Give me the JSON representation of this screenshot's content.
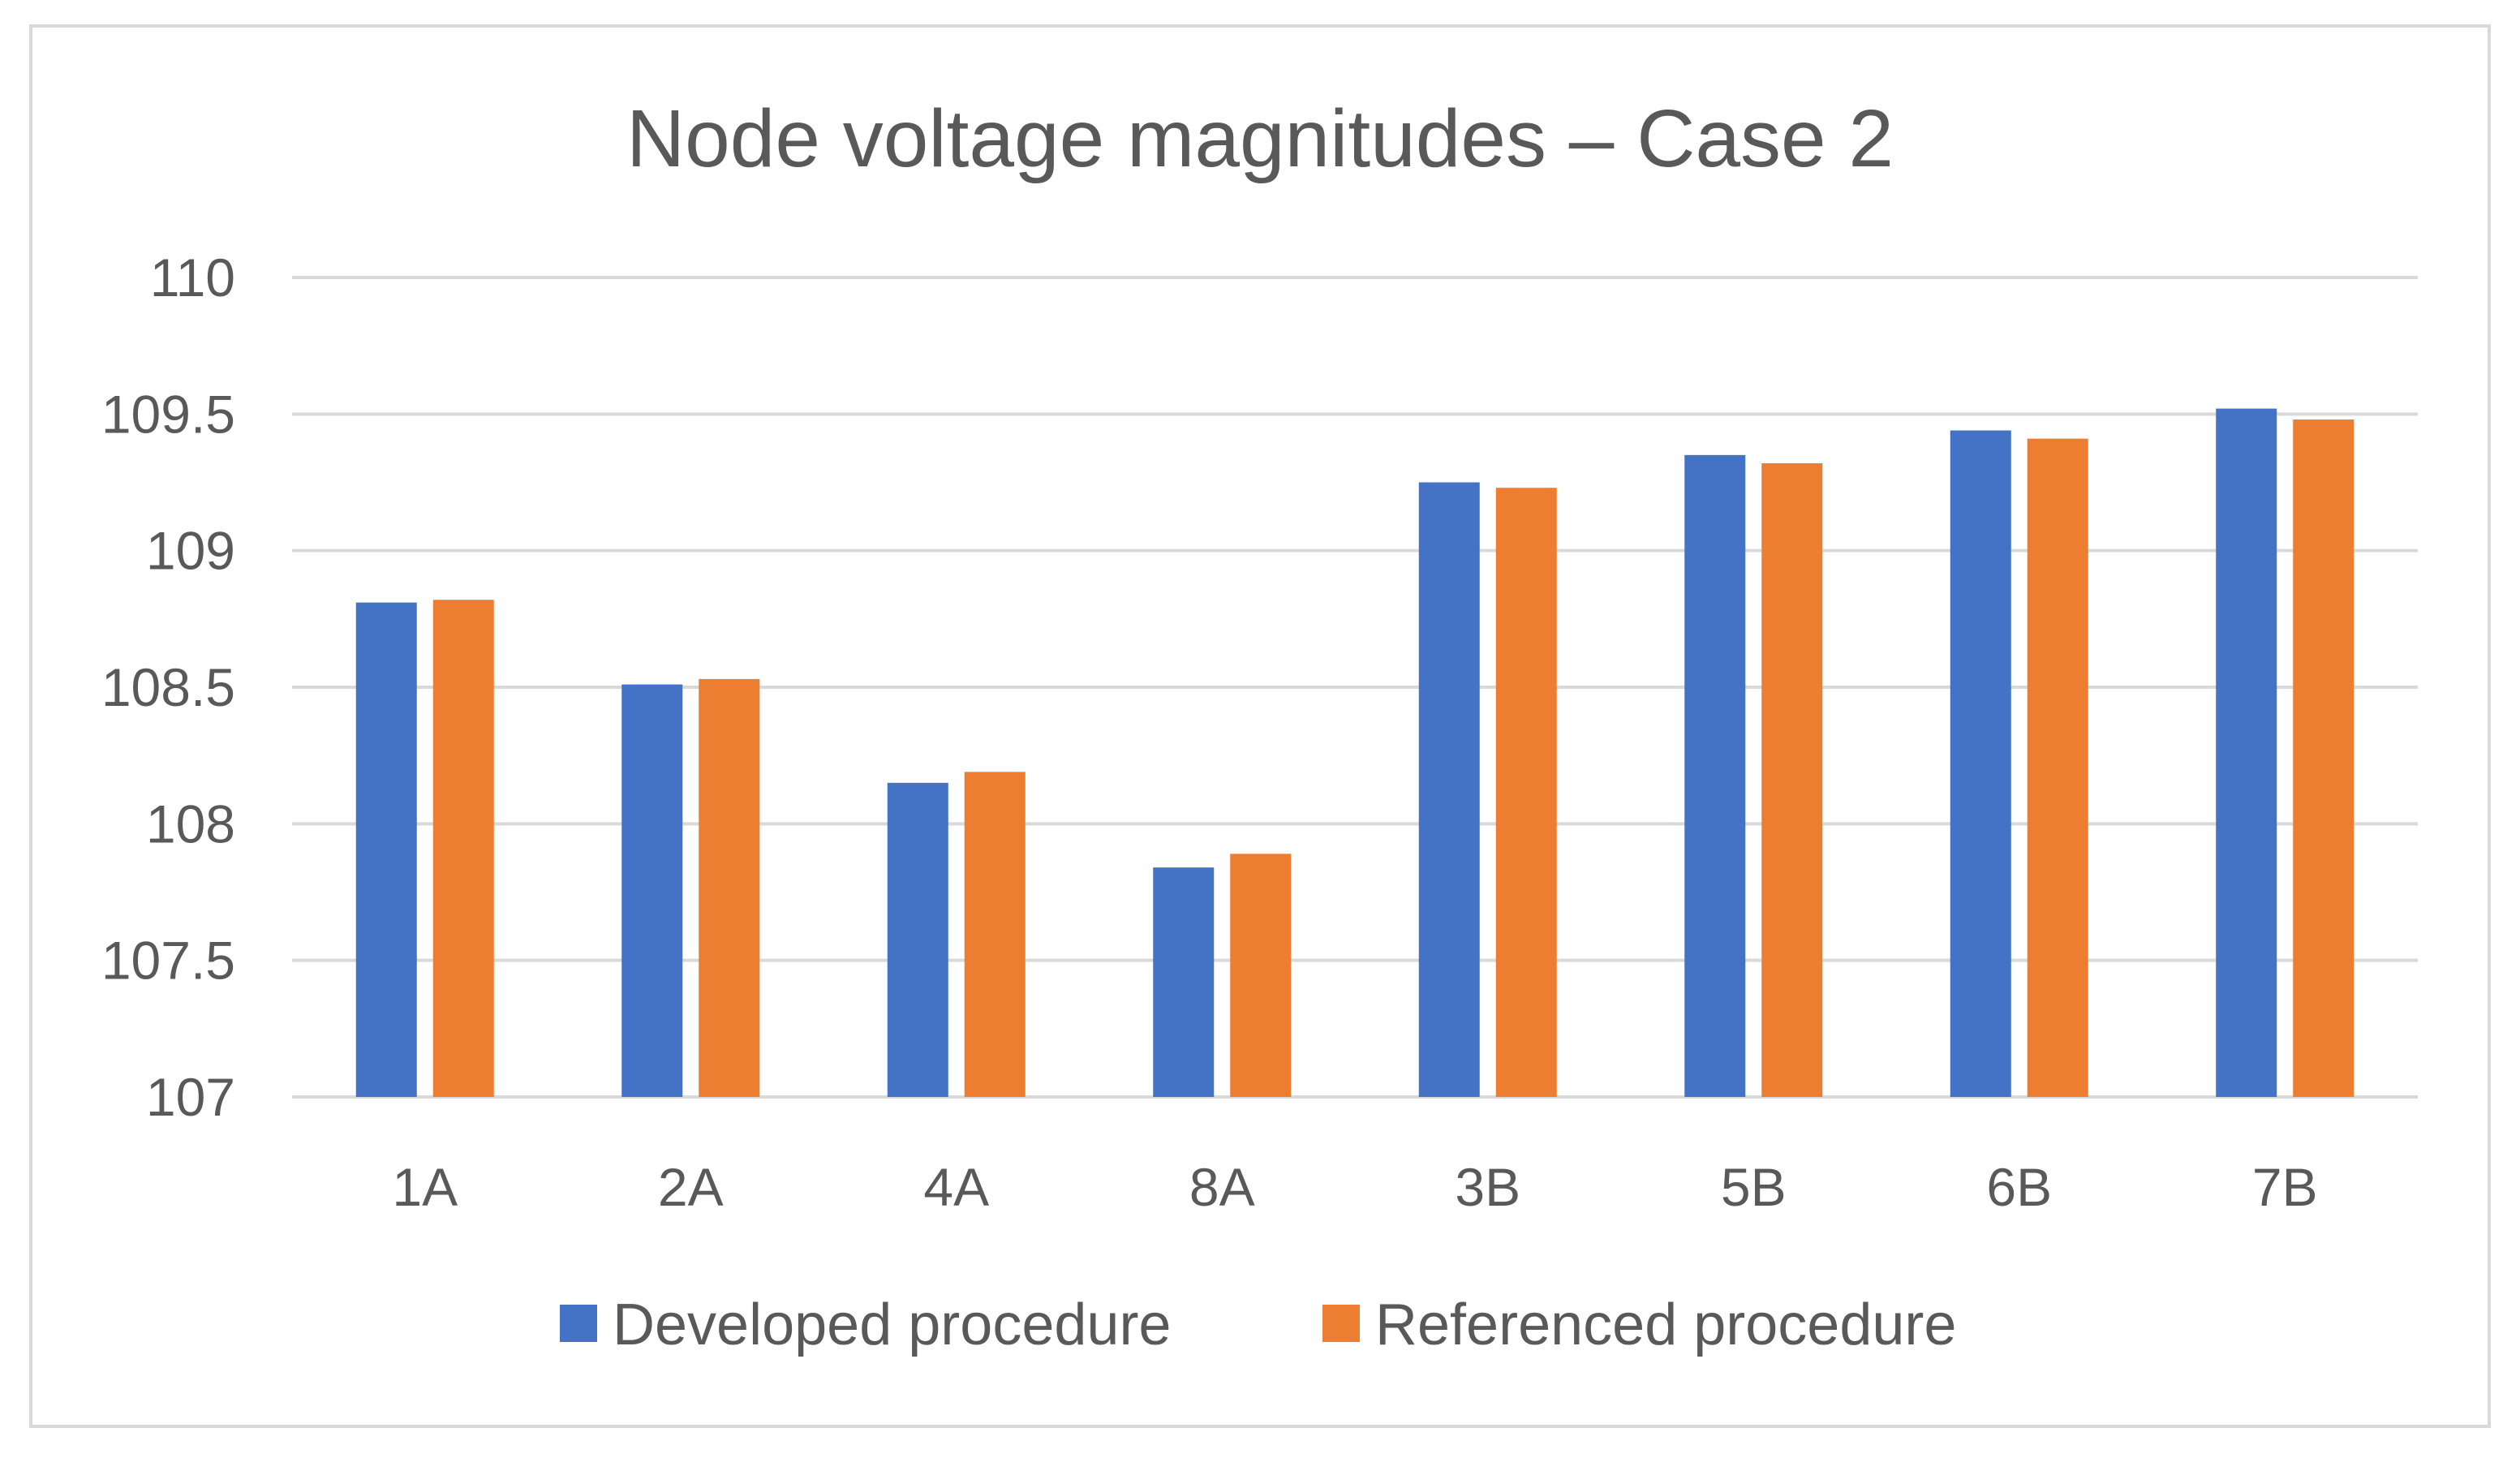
{
  "chart_data": {
    "type": "bar",
    "title": "Node voltage magnitudes – Case 2",
    "xlabel": "",
    "ylabel": "",
    "categories": [
      "1A",
      "2A",
      "4A",
      "8A",
      "3B",
      "5B",
      "6B",
      "7B"
    ],
    "series": [
      {
        "name": "Developed procedure",
        "color": "#4472c4",
        "values": [
          108.81,
          108.51,
          108.15,
          107.84,
          109.25,
          109.35,
          109.44,
          109.52
        ]
      },
      {
        "name": "Referenced procedure",
        "color": "#ed7d31",
        "values": [
          108.82,
          108.53,
          108.19,
          107.89,
          109.23,
          109.32,
          109.41,
          109.48
        ]
      }
    ],
    "ylim": [
      107,
      110
    ],
    "yticks": [
      "107",
      "107.5",
      "108",
      "108.5",
      "109",
      "109.5",
      "110"
    ],
    "grid": true,
    "legend_position": "bottom"
  }
}
